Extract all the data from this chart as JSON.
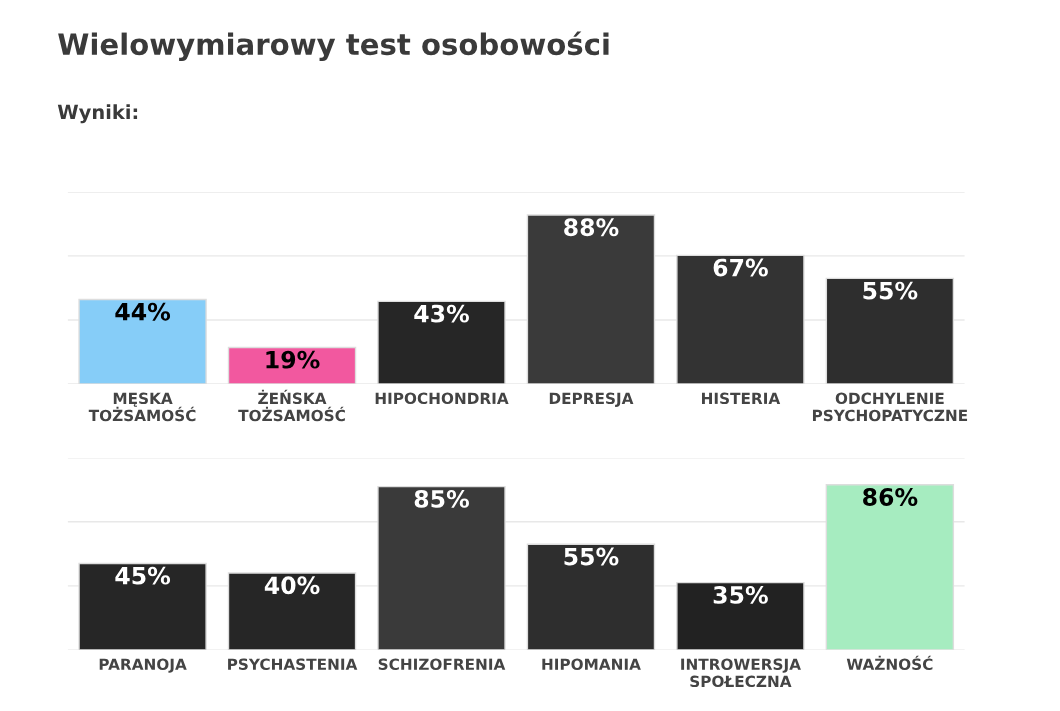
{
  "chart_data": [
    {
      "type": "bar",
      "title": "Wielowymiarowy test osobowości",
      "subtitle": "Wyniki:",
      "categories": [
        "MĘSKA\nTOŻSAMOŚĆ",
        "ŻEŃSKA\nTOŻSAMOŚĆ",
        "HIPOCHONDRIA",
        "DEPRESJA",
        "HISTERIA",
        "ODCHYLENIE\nPSYCHOPATYCZNE"
      ],
      "values": [
        44,
        19,
        43,
        88,
        67,
        55
      ],
      "colors": [
        "#86cdf8",
        "#f2589f",
        "#262626",
        "#3a3a3a",
        "#333333",
        "#2e2e2e"
      ],
      "value_labels": [
        "44%",
        "19%",
        "43%",
        "88%",
        "67%",
        "55%"
      ],
      "ylim": [
        0,
        100
      ],
      "yticks": [
        {
          "value": 0,
          "label": null
        },
        {
          "value": 33.3,
          "label": null
        },
        {
          "value": 66.7,
          "label": null
        },
        {
          "value": 100,
          "label": null
        }
      ],
      "tick_labels": "x",
      "grid": "y"
    },
    {
      "type": "bar",
      "categories": [
        "PARANOJA",
        "PSYCHASTENIA",
        "SCHIZOFRENIA",
        "HIPOMANIA",
        "INTROWERSJA\nSPOŁECZNA",
        "WAŻNOŚĆ"
      ],
      "values": [
        45,
        40,
        85,
        55,
        35,
        86
      ],
      "colors": [
        "#262626",
        "#262626",
        "#3a3a3a",
        "#2e2e2e",
        "#222222",
        "#a6ecc0"
      ],
      "value_labels": [
        "45%",
        "40%",
        "85%",
        "55%",
        "35%",
        "86%"
      ],
      "ylim": [
        0,
        100
      ],
      "yticks": [
        {
          "value": 0,
          "label": null
        },
        {
          "value": 33.3,
          "label": null
        },
        {
          "value": 66.7,
          "label": null
        },
        {
          "value": 100,
          "label": null
        }
      ],
      "tick_labels": "x",
      "grid": "y"
    }
  ]
}
